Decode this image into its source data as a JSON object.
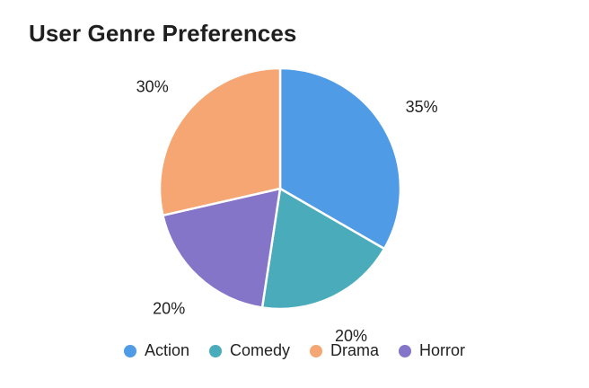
{
  "chart_data": {
    "type": "pie",
    "title": "User Genre Preferences",
    "categories": [
      "Action",
      "Comedy",
      "Drama",
      "Horror"
    ],
    "values": [
      35,
      20,
      30,
      20
    ],
    "value_labels": [
      "35%",
      "20%",
      "30%",
      "20%"
    ],
    "colors": [
      "#4f9be5",
      "#4aacbb",
      "#f5a673",
      "#8475c9"
    ],
    "slice_order": [
      "Action",
      "Comedy",
      "Horror",
      "Drama"
    ],
    "legend": {
      "position": "bottom",
      "items": [
        {
          "label": "Action",
          "color": "#4f9be5"
        },
        {
          "label": "Comedy",
          "color": "#4aacbb"
        },
        {
          "label": "Drama",
          "color": "#f5a673"
        },
        {
          "label": "Horror",
          "color": "#8475c9"
        }
      ]
    }
  }
}
